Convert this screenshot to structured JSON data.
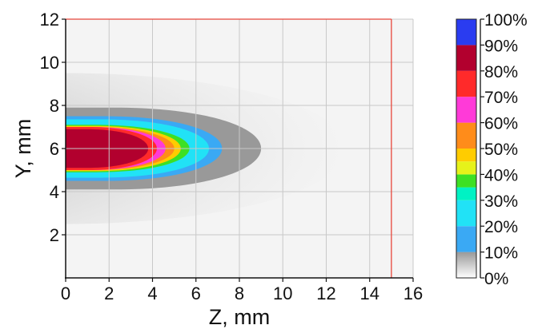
{
  "chart_data": {
    "type": "heatmap",
    "title": "",
    "xlabel": "Z, mm",
    "ylabel": "Y, mm",
    "xlim": [
      0,
      16
    ],
    "ylim": [
      0,
      12
    ],
    "x_ticks": [
      "0",
      "2",
      "4",
      "6",
      "8",
      "10",
      "12",
      "14",
      "16"
    ],
    "y_ticks": [
      "2",
      "4",
      "6",
      "8",
      "10",
      "12"
    ],
    "grid": true,
    "boundary_lines": [
      {
        "orientation": "vertical",
        "z": 15,
        "color": "#e8463a"
      },
      {
        "orientation": "horizontal",
        "y": 12,
        "color": "#e8463a"
      }
    ],
    "colorbar": {
      "ticks": [
        "100%",
        "90%",
        "80%",
        "70%",
        "60%",
        "50%",
        "40%",
        "30%",
        "20%",
        "10%",
        "0%"
      ],
      "bands": [
        {
          "from": 0,
          "to": 10,
          "gradient": [
            "#ffffff",
            "#999999"
          ]
        },
        {
          "from": 10,
          "to": 20,
          "color": "#3aa9f4"
        },
        {
          "from": 20,
          "to": 30,
          "color": "#21e2f6"
        },
        {
          "from": 30,
          "to": 35,
          "color": "#00f2c4"
        },
        {
          "from": 35,
          "to": 40,
          "color": "#3de024"
        },
        {
          "from": 40,
          "to": 45,
          "color": "#e6f21a"
        },
        {
          "from": 45,
          "to": 50,
          "color": "#ffcc00"
        },
        {
          "from": 50,
          "to": 60,
          "color": "#ff8c1a"
        },
        {
          "from": 60,
          "to": 70,
          "color": "#ff3ad8"
        },
        {
          "from": 70,
          "to": 80,
          "color": "#ff2a2a"
        },
        {
          "from": 80,
          "to": 90,
          "color": "#b2002e"
        },
        {
          "from": 90,
          "to": 100,
          "color": "#2a3cf0"
        }
      ]
    },
    "data_description": "Concentration field (percent) over Z, Y in mm; a plume issuing from Z=0 centred at Y=6.",
    "field": {
      "center_y": 6,
      "contours": [
        {
          "level": 90,
          "tip_z": 3.8,
          "half_width_y": 0.9
        },
        {
          "level": 80,
          "tip_z": 4.2,
          "half_width_y": 1.0
        },
        {
          "level": 70,
          "tip_z": 4.6,
          "half_width_y": 1.0
        },
        {
          "level": 60,
          "tip_z": 5.0,
          "half_width_y": 1.0
        },
        {
          "level": 50,
          "tip_z": 5.3,
          "half_width_y": 1.05
        },
        {
          "level": 40,
          "tip_z": 5.7,
          "half_width_y": 1.1
        },
        {
          "level": 30,
          "tip_z": 6.6,
          "half_width_y": 1.35
        },
        {
          "level": 20,
          "tip_z": 7.2,
          "half_width_y": 1.5
        },
        {
          "level": 10,
          "tip_z": 9.0,
          "half_width_y": 1.9
        }
      ],
      "haze": {
        "tip_z": 13,
        "half_width_y": 3.5
      }
    }
  }
}
